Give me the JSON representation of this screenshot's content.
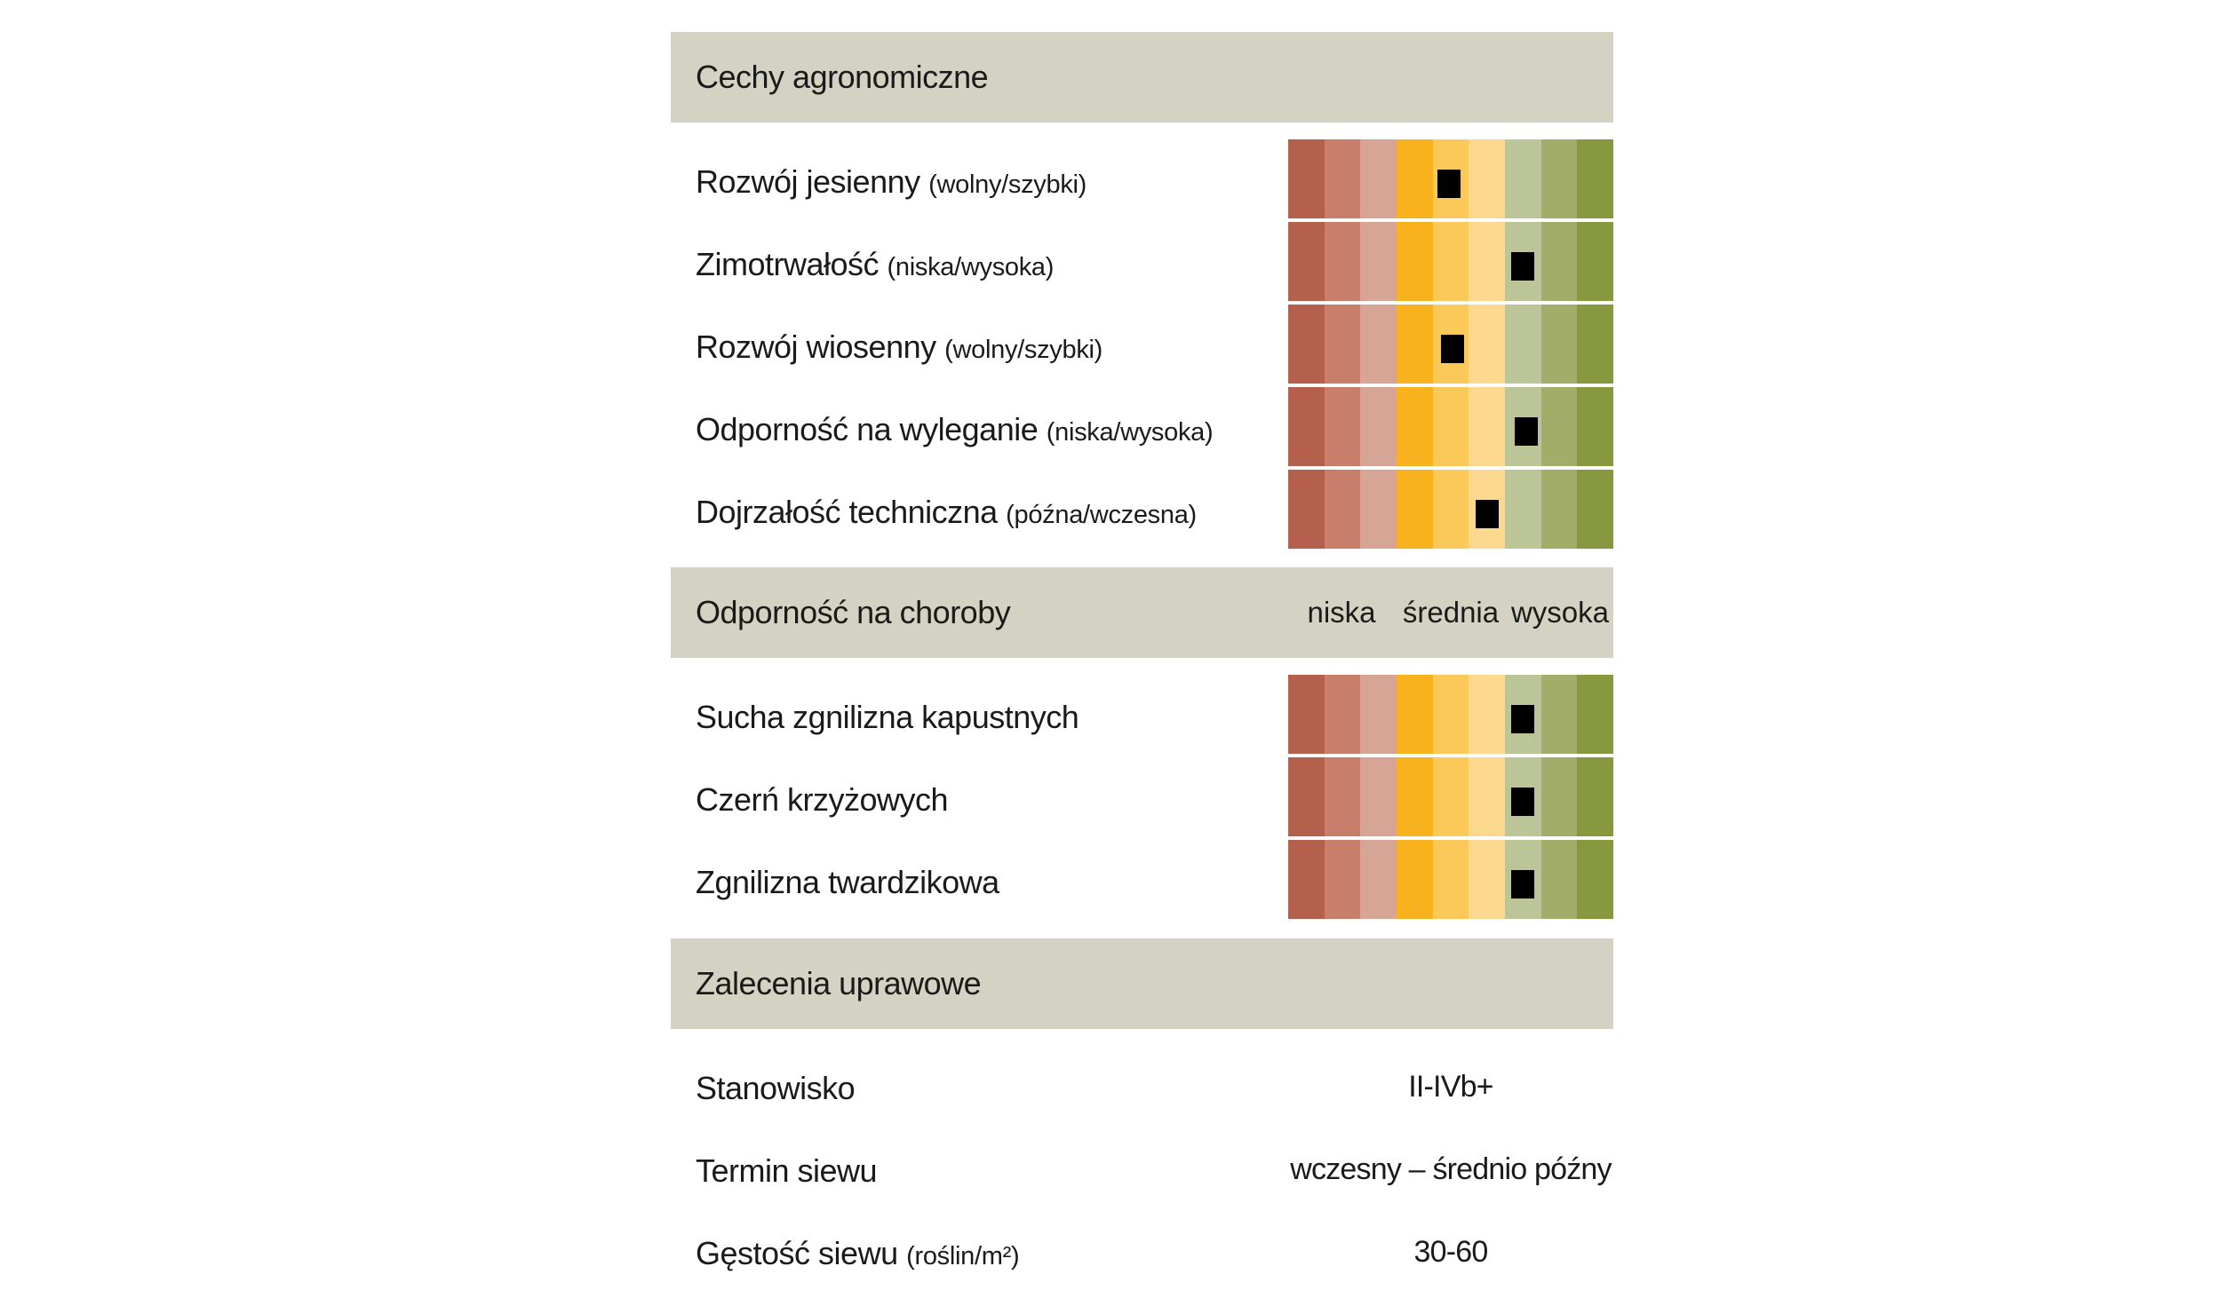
{
  "sections": {
    "agronomic": {
      "title": "Cechy agronomiczne",
      "rows": [
        {
          "label": "Rozwój jesienny",
          "sub": "(wolny/szybki)",
          "level": 4.45
        },
        {
          "label": "Zimotrwałość",
          "sub": "(niska/wysoka)",
          "level": 6.5
        },
        {
          "label": "Rozwój wiosenny",
          "sub": "(wolny/szybki)",
          "level": 4.55
        },
        {
          "label": "Odporność na wyleganie",
          "sub": "(niska/wysoka)",
          "level": 6.6
        },
        {
          "label": "Dojrzałość techniczna",
          "sub": "(późna/wczesna)",
          "level": 5.5
        }
      ]
    },
    "disease": {
      "title": "Odporność na choroby",
      "scale_labels": {
        "low": "niska",
        "mid": "średnia",
        "high": "wysoka"
      },
      "rows": [
        {
          "label": "Sucha zgnilizna kapustnych",
          "level": 6.5
        },
        {
          "label": "Czerń krzyżowych",
          "level": 6.5
        },
        {
          "label": "Zgnilizna twardzikowa",
          "level": 6.5
        }
      ]
    },
    "recommendations": {
      "title": "Zalecenia uprawowe",
      "rows": [
        {
          "label": "Stanowisko",
          "sub": "",
          "value": "II-IVb+"
        },
        {
          "label": "Termin siewu",
          "sub": "",
          "value": "wczesny – średnio późny"
        },
        {
          "label": "Gęstość siewu",
          "sub": "(roślin/m²)",
          "value": "30-60"
        }
      ]
    }
  },
  "scale_colors": [
    "#b4604d",
    "#c77f6c",
    "#d6a595",
    "#f7b21e",
    "#fbc95a",
    "#fcd98f",
    "#bcc597",
    "#a3ad6a",
    "#87983e"
  ]
}
